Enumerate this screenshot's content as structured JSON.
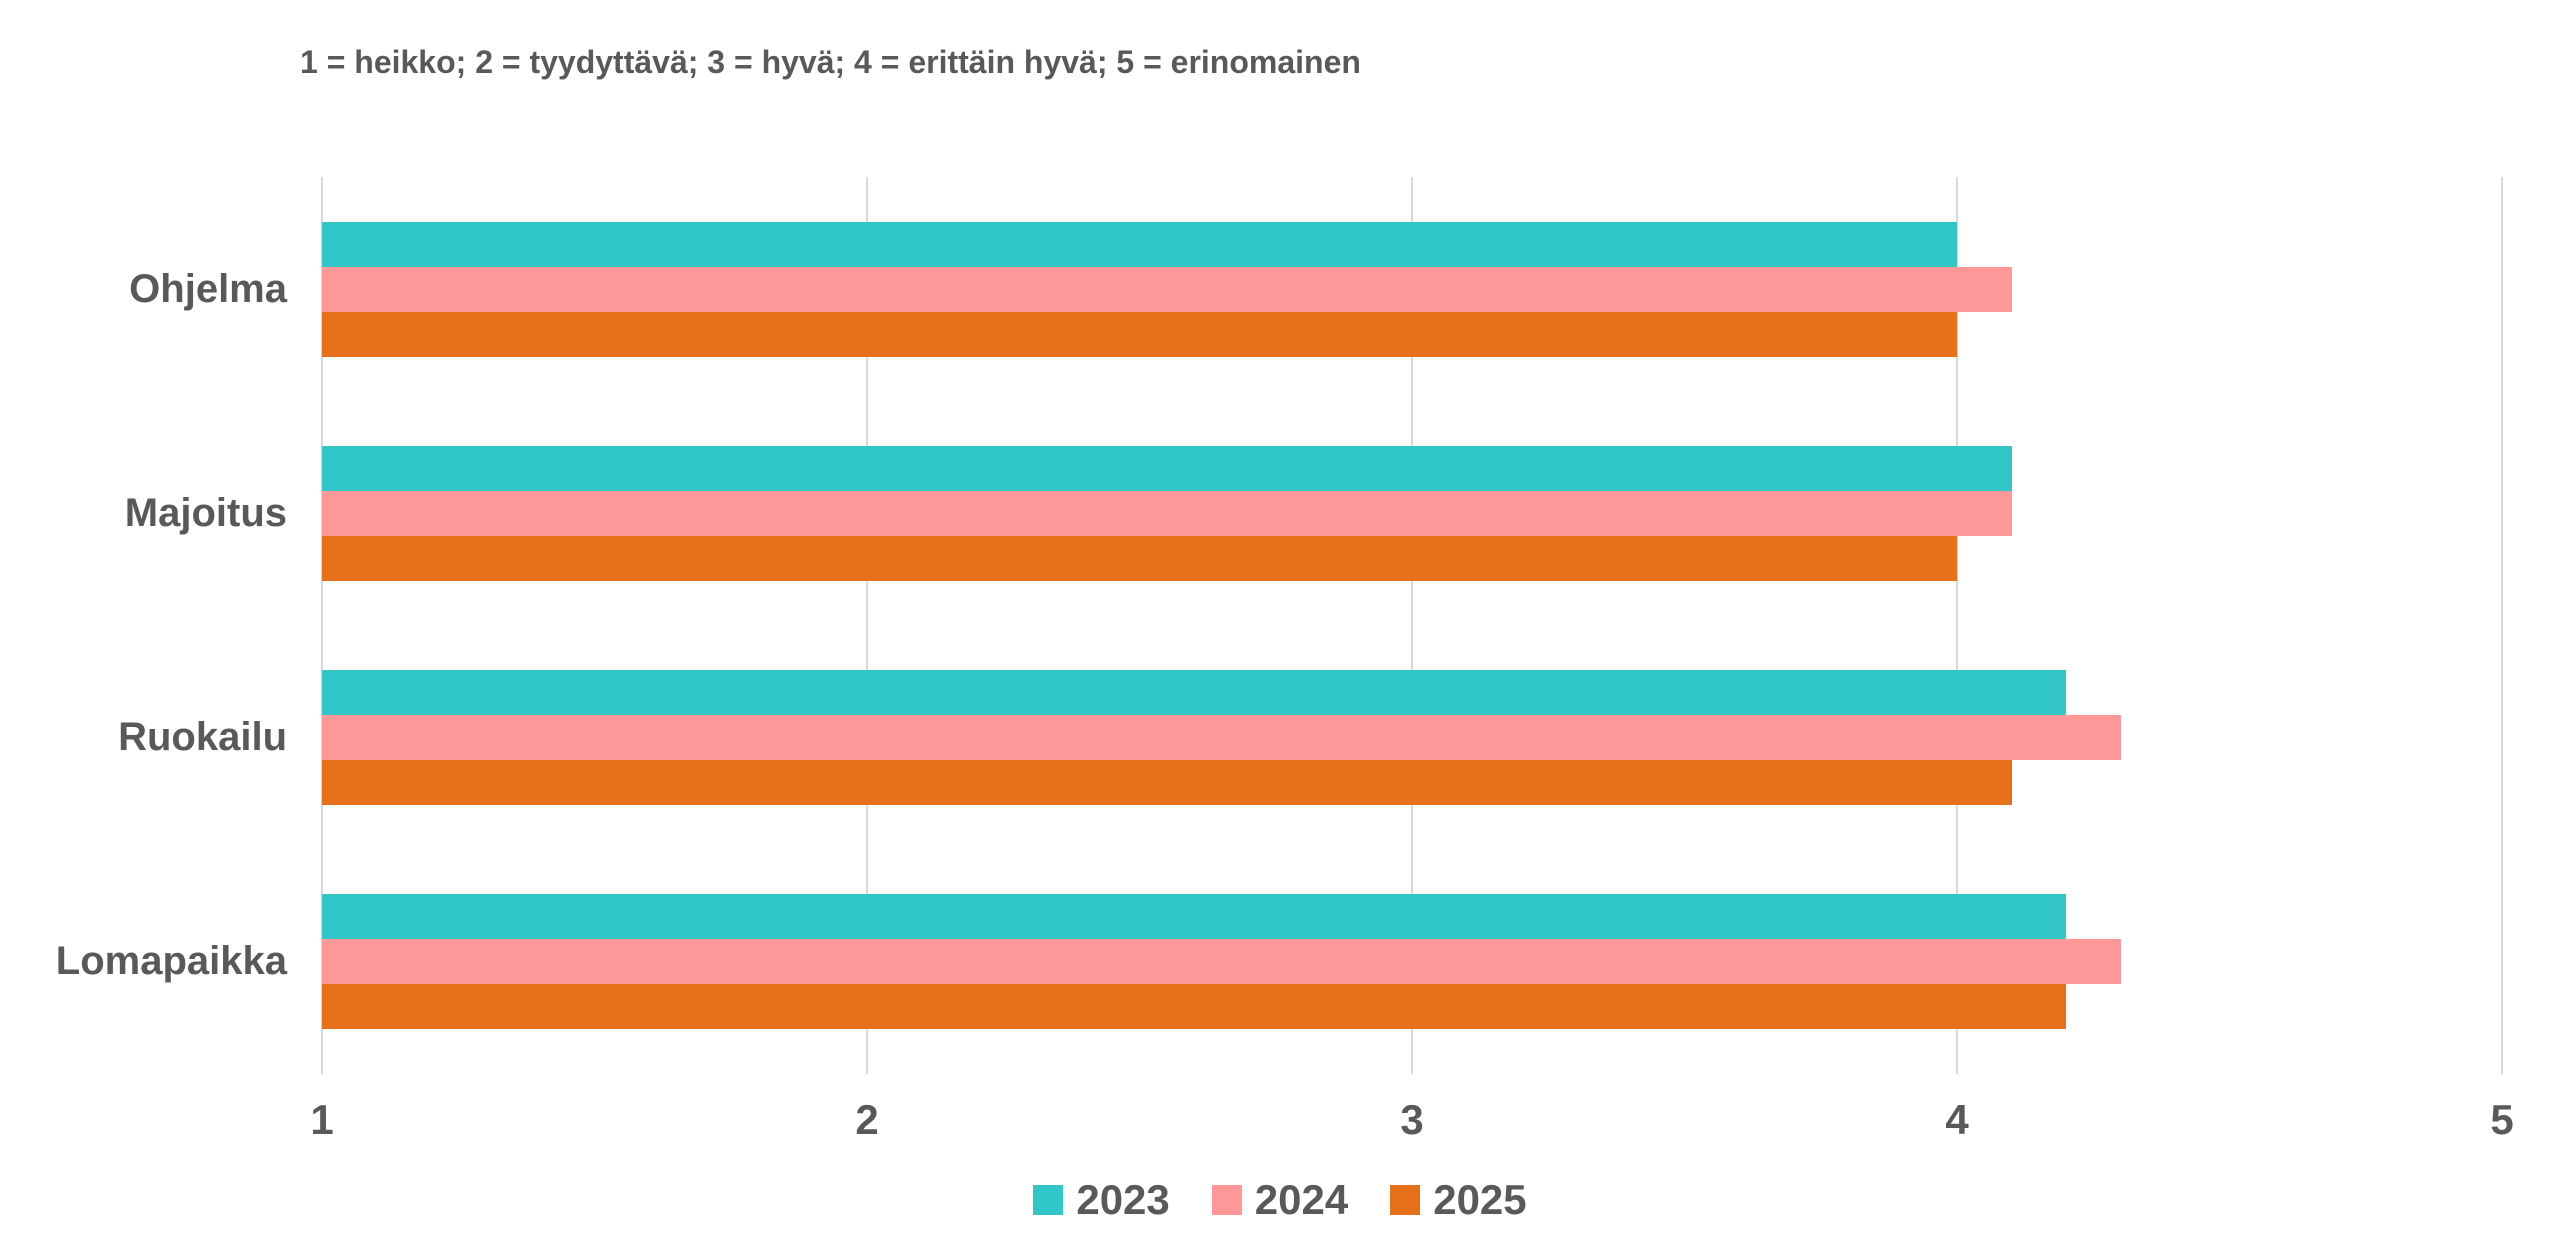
{
  "chart_data": {
    "type": "bar",
    "orientation": "horizontal",
    "title": "1 = heikko; 2 = tyydyttävä; 3 = hyvä; 4 = erittäin hyvä; 5 = erinomainen",
    "categories": [
      "Ohjelma",
      "Majoitus",
      "Ruokailu",
      "Lomapaikka"
    ],
    "series": [
      {
        "name": "2023",
        "color": "#31C6C8",
        "values": [
          4.0,
          4.1,
          4.2,
          4.2
        ]
      },
      {
        "name": "2024",
        "color": "#FD9798",
        "values": [
          4.1,
          4.1,
          4.3,
          4.3
        ]
      },
      {
        "name": "2025",
        "color": "#E7701B",
        "values": [
          4.0,
          4.0,
          4.1,
          4.2
        ]
      }
    ],
    "xlim": [
      1,
      5
    ],
    "xticks": [
      1,
      2,
      3,
      4,
      5
    ],
    "xlabel": "",
    "ylabel": "",
    "grid": true,
    "legend_position": "bottom",
    "colors": {
      "text": "#595959",
      "gridline": "#D9D9D9",
      "background": "#FFFFFF"
    }
  }
}
